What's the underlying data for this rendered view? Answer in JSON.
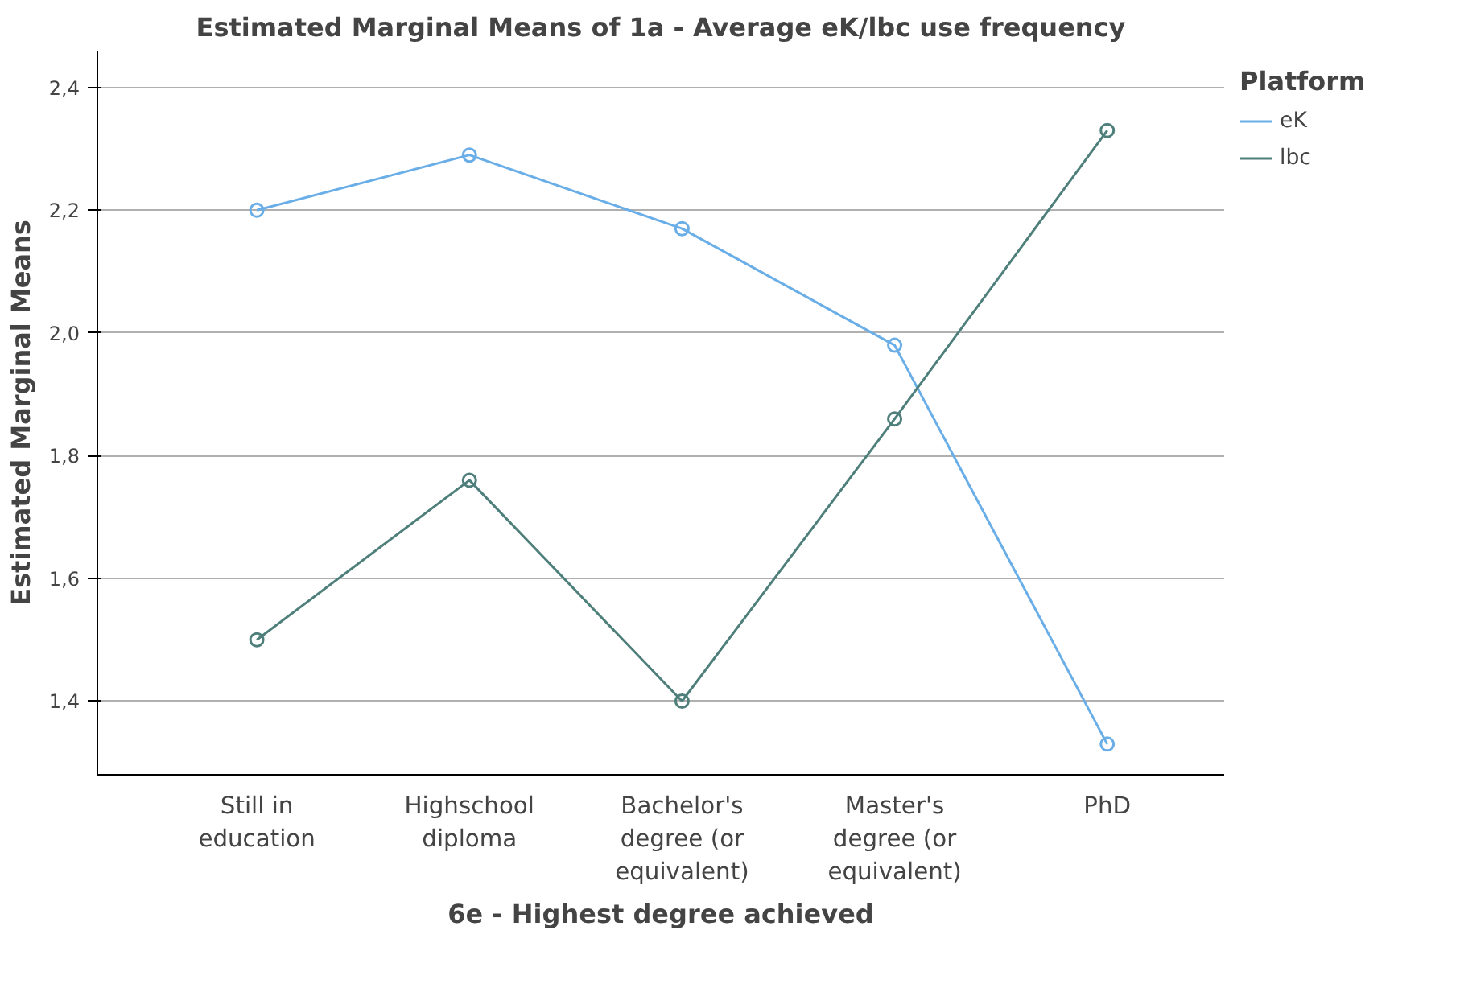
{
  "chart_data": {
    "type": "line",
    "title": "Estimated Marginal Means of 1a - Average eK/lbc use frequency",
    "xlabel": "6e - Highest degree achieved",
    "ylabel": "Estimated Marginal Means",
    "legend_title": "Platform",
    "categories": [
      "Still in\neducation",
      "Highschool\ndiploma",
      "Bachelor's\ndegree (or\nequivalent)",
      "Master's\ndegree (or\nequivalent)",
      "PhD"
    ],
    "series": [
      {
        "name": "eK",
        "color": "#6aaee8",
        "values": [
          2.2,
          2.29,
          2.17,
          1.98,
          1.33
        ]
      },
      {
        "name": "lbc",
        "color": "#4e7f7b",
        "values": [
          1.5,
          1.76,
          1.4,
          1.86,
          2.33
        ]
      }
    ],
    "ylim": [
      1.28,
      2.46
    ],
    "yticks": [
      {
        "value": 1.4,
        "label": "1,4"
      },
      {
        "value": 1.6,
        "label": "1,6"
      },
      {
        "value": 1.8,
        "label": "1,8"
      },
      {
        "value": 2.0,
        "label": "2,0"
      },
      {
        "value": 2.2,
        "label": "2,2"
      },
      {
        "value": 2.4,
        "label": "2,4"
      }
    ],
    "grid": "y",
    "legend": "top right",
    "marker": "circle",
    "line_style": "solid"
  }
}
